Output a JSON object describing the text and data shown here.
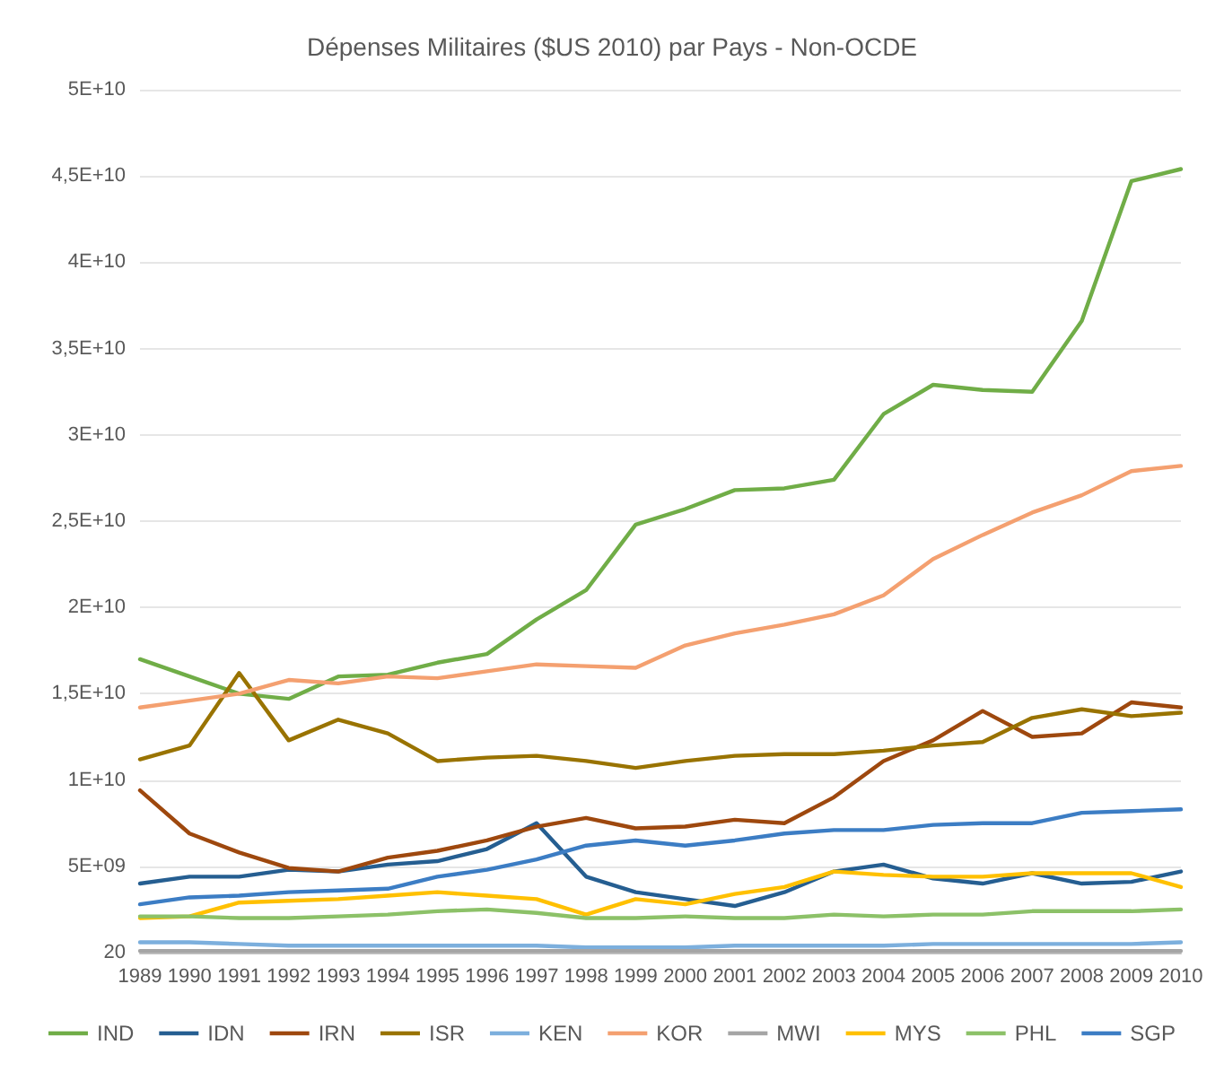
{
  "chart_data": {
    "type": "line",
    "title": "Dépenses Militaires ($US 2010) par Pays - Non-OCDE",
    "categories": [
      "1989",
      "1990",
      "1991",
      "1992",
      "1993",
      "1994",
      "1995",
      "1996",
      "1997",
      "1998",
      "1999",
      "2000",
      "2001",
      "2002",
      "2003",
      "2004",
      "2005",
      "2006",
      "2007",
      "2008",
      "2009",
      "2010"
    ],
    "series": [
      {
        "name": "IND",
        "color": "#70ad47",
        "values": [
          17000000000.0,
          16000000000.0,
          15000000000.0,
          14700000000.0,
          16000000000.0,
          16100000000.0,
          16800000000.0,
          17300000000.0,
          19300000000.0,
          21000000000.0,
          24800000000.0,
          25700000000.0,
          26800000000.0,
          26900000000.0,
          27400000000.0,
          31200000000.0,
          32900000000.0,
          32600000000.0,
          32500000000.0,
          36600000000.0,
          44700000000.0,
          45400000000.0
        ]
      },
      {
        "name": "IDN",
        "color": "#255e91",
        "values": [
          4000000000.0,
          4400000000.0,
          4400000000.0,
          4800000000.0,
          4700000000.0,
          5100000000.0,
          5300000000.0,
          6000000000.0,
          7500000000.0,
          4400000000.0,
          3500000000.0,
          3100000000.0,
          2700000000.0,
          3500000000.0,
          4700000000.0,
          5100000000.0,
          4300000000.0,
          4000000000.0,
          4600000000.0,
          4000000000.0,
          4100000000.0,
          4700000000.0
        ]
      },
      {
        "name": "IRN",
        "color": "#9e480e",
        "values": [
          9400000000.0,
          6900000000.0,
          5800000000.0,
          4900000000.0,
          4700000000.0,
          5500000000.0,
          5900000000.0,
          6500000000.0,
          7300000000.0,
          7800000000.0,
          7200000000.0,
          7300000000.0,
          7700000000.0,
          7500000000.0,
          9000000000.0,
          11100000000.0,
          12300000000.0,
          14000000000.0,
          12500000000.0,
          12700000000.0,
          14500000000.0,
          14200000000.0
        ]
      },
      {
        "name": "ISR",
        "color": "#997300",
        "values": [
          11200000000.0,
          12000000000.0,
          16200000000.0,
          12300000000.0,
          13500000000.0,
          12700000000.0,
          11100000000.0,
          11300000000.0,
          11400000000.0,
          11100000000.0,
          10700000000.0,
          11100000000.0,
          11400000000.0,
          11500000000.0,
          11500000000.0,
          11700000000.0,
          12000000000.0,
          12200000000.0,
          13600000000.0,
          14100000000.0,
          13700000000.0,
          13900000000.0
        ]
      },
      {
        "name": "KEN",
        "color": "#7cafdd",
        "values": [
          600000000.0,
          600000000.0,
          500000000.0,
          400000000.0,
          400000000.0,
          400000000.0,
          400000000.0,
          400000000.0,
          400000000.0,
          300000000.0,
          300000000.0,
          300000000.0,
          400000000.0,
          400000000.0,
          400000000.0,
          400000000.0,
          500000000.0,
          500000000.0,
          500000000.0,
          500000000.0,
          500000000.0,
          600000000.0
        ]
      },
      {
        "name": "KOR",
        "color": "#f4a070",
        "values": [
          14200000000.0,
          14600000000.0,
          15000000000.0,
          15800000000.0,
          15600000000.0,
          16000000000.0,
          15900000000.0,
          16300000000.0,
          16700000000.0,
          16600000000.0,
          16500000000.0,
          17800000000.0,
          18500000000.0,
          19000000000.0,
          19600000000.0,
          20700000000.0,
          22800000000.0,
          24200000000.0,
          25500000000.0,
          26500000000.0,
          27900000000.0,
          28200000000.0
        ]
      },
      {
        "name": "MWI",
        "color": "#a5a5a5",
        "values": [
          100000000.0,
          100000000.0,
          100000000.0,
          100000000.0,
          100000000.0,
          100000000.0,
          100000000.0,
          100000000.0,
          100000000.0,
          100000000.0,
          100000000.0,
          100000000.0,
          100000000.0,
          100000000.0,
          100000000.0,
          100000000.0,
          100000000.0,
          100000000.0,
          100000000.0,
          100000000.0,
          100000000.0,
          100000000.0
        ]
      },
      {
        "name": "MYS",
        "color": "#ffc000",
        "values": [
          2000000000.0,
          2100000000.0,
          2900000000.0,
          3000000000.0,
          3100000000.0,
          3300000000.0,
          3500000000.0,
          3300000000.0,
          3100000000.0,
          2200000000.0,
          3100000000.0,
          2800000000.0,
          3400000000.0,
          3800000000.0,
          4700000000.0,
          4500000000.0,
          4400000000.0,
          4400000000.0,
          4600000000.0,
          4600000000.0,
          4600000000.0,
          3800000000.0
        ]
      },
      {
        "name": "PHL",
        "color": "#8cc168",
        "values": [
          2100000000.0,
          2100000000.0,
          2000000000.0,
          2000000000.0,
          2100000000.0,
          2200000000.0,
          2400000000.0,
          2500000000.0,
          2300000000.0,
          2000000000.0,
          2000000000.0,
          2100000000.0,
          2000000000.0,
          2000000000.0,
          2200000000.0,
          2100000000.0,
          2200000000.0,
          2200000000.0,
          2400000000.0,
          2400000000.0,
          2400000000.0,
          2500000000.0
        ]
      },
      {
        "name": "SGP",
        "color": "#3c7dc4",
        "values": [
          2800000000.0,
          3200000000.0,
          3300000000.0,
          3500000000.0,
          3600000000.0,
          3700000000.0,
          4400000000.0,
          4800000000.0,
          5400000000.0,
          6200000000.0,
          6500000000.0,
          6200000000.0,
          6500000000.0,
          6900000000.0,
          7100000000.0,
          7100000000.0,
          7400000000.0,
          7500000000.0,
          7500000000.0,
          8100000000.0,
          8200000000.0,
          8300000000.0
        ]
      }
    ],
    "ylim": [
      0,
      50000000000.0
    ],
    "yticks": [
      20,
      {
        "value": 5000000000.0,
        "label": "5E+09"
      },
      {
        "value": 10000000000.0,
        "label": "1E+10"
      },
      {
        "value": 15000000000.0,
        "label": "1,5E+10"
      },
      {
        "value": 20000000000.0,
        "label": "2E+10"
      },
      {
        "value": 25000000000.0,
        "label": "2,5E+10"
      },
      {
        "value": 30000000000.0,
        "label": "3E+10"
      },
      {
        "value": 35000000000.0,
        "label": "3,5E+10"
      },
      {
        "value": 40000000000.0,
        "label": "4E+10"
      },
      {
        "value": 45000000000.0,
        "label": "4,5E+10"
      },
      {
        "value": 50000000000.0,
        "label": "5E+10"
      }
    ],
    "grid": "y",
    "legend": "bottom",
    "marker": "none",
    "line_style": "solid"
  }
}
